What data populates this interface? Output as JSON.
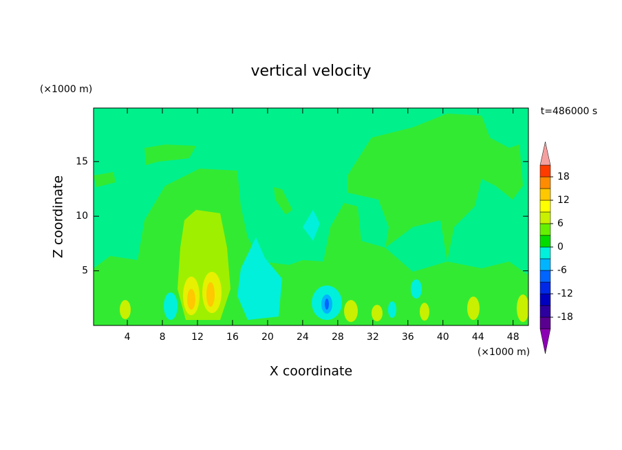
{
  "chart_data": {
    "type": "contour",
    "title": "vertical velocity",
    "x_label": "X coordinate",
    "y_label": "Z coordinate",
    "x_unit": "(×1000 m)",
    "y_unit": "(×1000 m)",
    "time_label": "t=486000 s",
    "xlim": [
      0.15,
      49.75
    ],
    "ylim": [
      0,
      19.9
    ],
    "xticks": [
      4,
      8,
      12,
      16,
      20,
      24,
      28,
      32,
      36,
      40,
      44,
      48
    ],
    "yticks": [
      5,
      10,
      15
    ],
    "colorbar": {
      "levels": [
        -21,
        -18,
        -15,
        -12,
        -9,
        -6,
        -3,
        0,
        3,
        6,
        9,
        12,
        15,
        18,
        21
      ],
      "colors": [
        "#8c00b4",
        "#5a0090",
        "#2d00a0",
        "#0000c0",
        "#0028e6",
        "#0064ff",
        "#00b4ff",
        "#00f0dc",
        "#00dc00",
        "#64f000",
        "#c8f000",
        "#ffff00",
        "#ffc800",
        "#ff8c00",
        "#ff3c00",
        "#e60000",
        "#f5a0a0"
      ],
      "ticks": [
        -18,
        -12,
        -6,
        0,
        6,
        12,
        18
      ]
    }
  }
}
